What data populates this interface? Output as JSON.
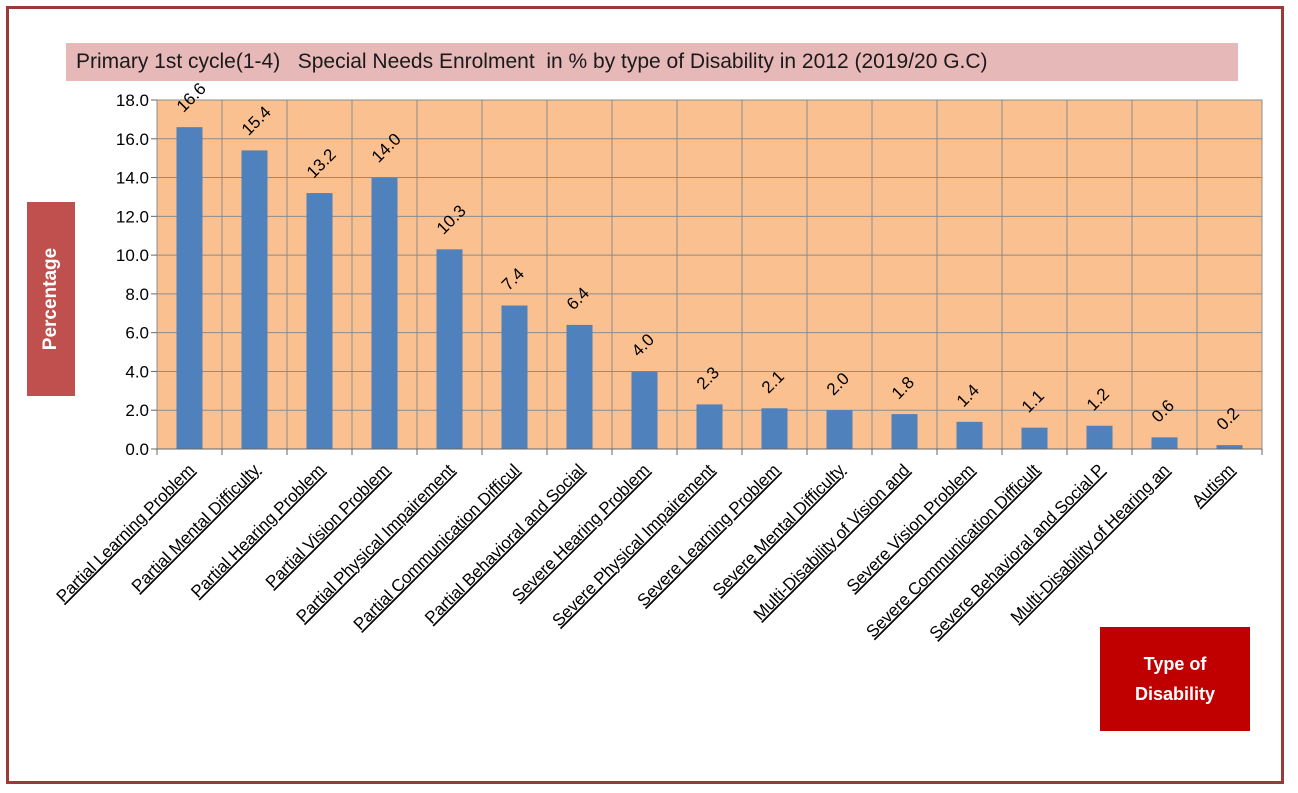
{
  "chart_data": {
    "type": "bar",
    "title": "Primary 1st cycle(1-4)   Special Needs Enrolment  in % by type of Disability in 2012 (2019/20 G.C)",
    "ylabel": "Percentage",
    "xlabel_lines": [
      "Type of",
      "Disability"
    ],
    "ylim": [
      0,
      18
    ],
    "ytick_step": 2,
    "yticks": [
      "0.0",
      "2.0",
      "4.0",
      "6.0",
      "8.0",
      "10.0",
      "12.0",
      "14.0",
      "16.0",
      "18.0"
    ],
    "grid": true,
    "categories": [
      "Partial Learning Problem",
      "Partial Mental Difficulty",
      "Partial Hearing Problem",
      "Partial Vision Problem",
      "Partial Physical Impairement",
      "Partial Communication Difficul",
      "Partial Behavioral and Social",
      "Severe Hearing Problem",
      "Severe Physical Impairement",
      "Severe Learning Problem",
      "Severe Mental Difficulty",
      "Multi-Disability of Vision and",
      "Severe Vision Problem",
      "Severe Communication Difficult",
      "Severe Behavioral and Social P",
      "Multi-Disability of Hearing an",
      "Autism"
    ],
    "values": [
      16.6,
      15.4,
      13.2,
      14.0,
      10.3,
      7.4,
      6.4,
      4.0,
      2.3,
      2.1,
      2.0,
      1.8,
      1.4,
      1.1,
      1.2,
      0.6,
      0.2
    ],
    "data_labels": [
      "16.6",
      "15.4",
      "13.2",
      "14.0",
      "10.3",
      "7.4",
      "6.4",
      "4.0",
      "2.3",
      "2.1",
      "2.0",
      "1.8",
      "1.4",
      "1.1",
      "1.2",
      "0.6",
      "0.2"
    ],
    "colors": {
      "plot_background": "#fac090",
      "bar": "#4f81bd",
      "grid": "#8c8c8c",
      "frame": "#9b3a36",
      "title_background": "#e6b8b7",
      "ylabel_background": "#c0504d",
      "xlabel_background": "#c00000"
    }
  }
}
